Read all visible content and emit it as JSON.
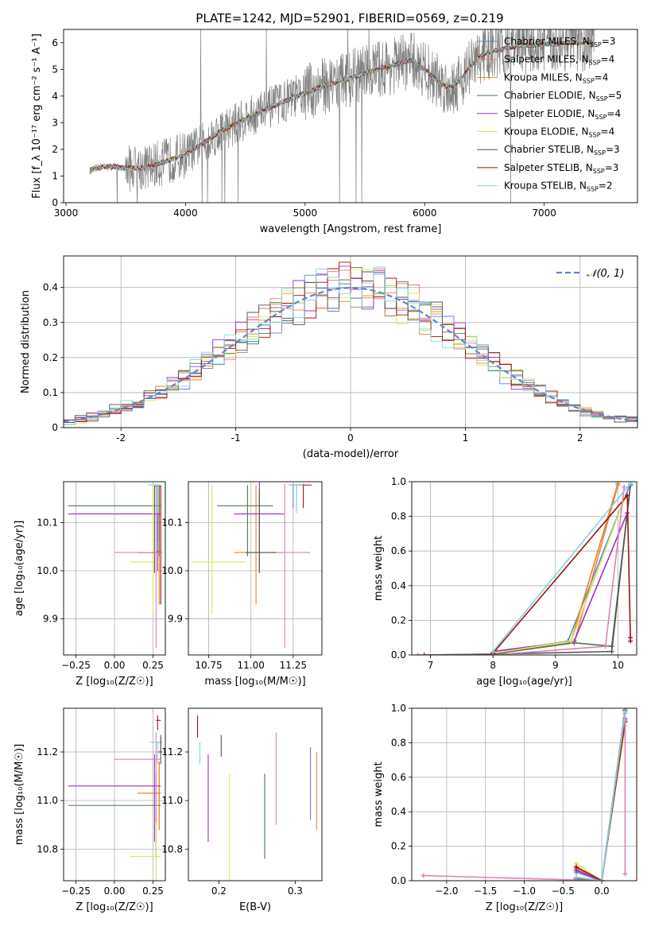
{
  "figure": {
    "title": "PLATE=1242, MJD=52901, FIBERID=0569, z=0.219"
  },
  "colors": {
    "Chabrier MILES": "#5b84d8",
    "Salpeter MILES": "#f07a55",
    "Kroupa MILES": "#e08a1c",
    "Chabrier ELODIE": "#4a7a4a",
    "Salpeter ELODIE": "#a32cc4",
    "Kroupa ELODIE": "#d4e85a",
    "Chabrier STELIB": "#555555",
    "Salpeter STELIB": "#a01010",
    "Kroupa STELIB": "#7fd4e0",
    "data_spectrum": "#808080",
    "normal_curve": "#5b84d8",
    "pink": "#e080b8"
  },
  "chart_data": [
    {
      "id": "spectrum",
      "type": "line",
      "title": "PLATE=1242, MJD=52901, FIBERID=0569, z=0.219",
      "xlabel": "wavelength [Angstrom, rest frame]",
      "ylabel": "Flux [f_λ 10⁻¹⁷ erg cm⁻² s⁻¹ A⁻¹]",
      "xlim": [
        2980,
        7780
      ],
      "ylim": [
        0,
        6.5
      ],
      "xticks": [
        3000,
        4000,
        5000,
        6000,
        7000
      ],
      "yticks": [
        0,
        1,
        2,
        3,
        4,
        5,
        6
      ],
      "grid": false,
      "legend_position": "top-right",
      "legend": [
        {
          "name": "Chabrier MILES",
          "label": "Chabrier MILES, N",
          "sub": "SSP",
          "n": "=3"
        },
        {
          "name": "Salpeter MILES",
          "label": "Salpeter MILES, N",
          "sub": "SSP",
          "n": "=4"
        },
        {
          "name": "Kroupa MILES",
          "label": "Kroupa MILES, N",
          "sub": "SSP",
          "n": "=4"
        },
        {
          "name": "Chabrier ELODIE",
          "label": "Chabrier ELODIE, N",
          "sub": "SSP",
          "n": "=5"
        },
        {
          "name": "Salpeter ELODIE",
          "label": "Salpeter ELODIE, N",
          "sub": "SSP",
          "n": "=4"
        },
        {
          "name": "Kroupa ELODIE",
          "label": "Kroupa ELODIE, N",
          "sub": "SSP",
          "n": "=4"
        },
        {
          "name": "Chabrier STELIB",
          "label": "Chabrier STELIB, N",
          "sub": "SSP",
          "n": "=3"
        },
        {
          "name": "Salpeter STELIB",
          "label": "Salpeter STELIB, N",
          "sub": "SSP",
          "n": "=3"
        },
        {
          "name": "Kroupa STELIB",
          "label": "Kroupa STELIB, N",
          "sub": "SSP",
          "n": "=2"
        }
      ],
      "continuum": {
        "x": [
          3200,
          3300,
          3400,
          3500,
          3600,
          3700,
          3800,
          3900,
          4000,
          4100,
          4200,
          4300,
          4400,
          4500,
          4600,
          4700,
          4800,
          4900,
          5000,
          5100,
          5200,
          5300,
          5400,
          5500,
          5600,
          5700,
          5800,
          5900,
          6000,
          6100,
          6200,
          6300,
          6400,
          6500,
          6600,
          6700,
          6800,
          6900,
          7000,
          7100,
          7200,
          7300,
          7400
        ],
        "y": [
          1.2,
          1.35,
          1.35,
          1.3,
          1.3,
          1.35,
          1.5,
          1.65,
          1.8,
          2.1,
          2.4,
          2.7,
          2.9,
          3.15,
          3.35,
          3.55,
          3.75,
          3.95,
          4.1,
          4.3,
          4.45,
          4.55,
          4.7,
          4.85,
          5.0,
          5.1,
          5.25,
          5.35,
          5.0,
          4.6,
          4.3,
          4.6,
          5.2,
          5.6,
          5.7,
          5.8,
          5.9,
          5.9,
          5.95,
          5.95,
          6.0,
          6.0,
          6.0
        ]
      }
    },
    {
      "id": "residuals",
      "type": "area",
      "xlabel": "(data-model)/error",
      "ylabel": "Normed distribution",
      "xlim": [
        -2.5,
        2.5
      ],
      "ylim": [
        0,
        0.49
      ],
      "xticks": [
        -2,
        -1,
        0,
        1,
        2
      ],
      "yticks": [
        0.0,
        0.1,
        0.2,
        0.3,
        0.4
      ],
      "grid": true,
      "legend_position": "top-right",
      "legend": [
        {
          "name": "normal",
          "label": "𝒩(0, 1)"
        }
      ],
      "bin_width": 0.1
    },
    {
      "id": "age_vs_Z",
      "type": "scatter",
      "xlabel": "Z [log₁₀(Z/Z☉)]",
      "ylabel": "age  [log₁₀(age/yr)]",
      "xlim": [
        -0.33,
        0.33
      ],
      "ylim": [
        9.825,
        10.185
      ],
      "xticks": [
        -0.25,
        0.0,
        0.25
      ],
      "xticklabels": [
        "−0.25",
        "0.00",
        "0.25"
      ],
      "yticks": [
        9.9,
        10.0,
        10.1
      ],
      "yticklabels": [
        "9.9",
        "10.0",
        "10.1"
      ],
      "grid": true,
      "points": [
        {
          "model": "Chabrier MILES",
          "x": 0.28,
          "xlo": 0.27,
          "xhi": 0.3,
          "y": 10.175,
          "ylo": 10.06,
          "yhi": 10.178
        },
        {
          "model": "Salpeter MILES",
          "x": 0.29,
          "xlo": 0.26,
          "xhi": 0.3,
          "y": 10.175,
          "ylo": 10.06,
          "yhi": 10.178
        },
        {
          "model": "Kroupa MILES",
          "x": 0.29,
          "xlo": 0.27,
          "xhi": 0.3,
          "y": 10.04,
          "ylo": 9.93,
          "yhi": 10.178
        },
        {
          "model": "Chabrier ELODIE",
          "x": 0.29,
          "xlo": -0.3,
          "xhi": 0.3,
          "y": 10.135,
          "ylo": 10.03,
          "yhi": 10.178
        },
        {
          "model": "Salpeter ELODIE",
          "x": 0.28,
          "xlo": -0.3,
          "xhi": 0.3,
          "y": 10.118,
          "ylo": 10.0,
          "yhi": 10.178
        },
        {
          "model": "Kroupa ELODIE",
          "x": 0.25,
          "xlo": 0.1,
          "xhi": 0.3,
          "y": 10.018,
          "ylo": 9.91,
          "yhi": 10.178
        },
        {
          "model": "Chabrier STELIB",
          "x": 0.26,
          "xlo": 0.15,
          "xhi": 0.3,
          "y": 10.038,
          "ylo": 9.995,
          "yhi": 10.178
        },
        {
          "model": "Salpeter STELIB",
          "x": 0.3,
          "xlo": 0.15,
          "xhi": 0.31,
          "y": 10.038,
          "ylo": 9.93,
          "yhi": 10.178
        },
        {
          "model": "pink",
          "x": 0.27,
          "xlo": 0.0,
          "xhi": 0.31,
          "y": 10.038,
          "ylo": 9.84,
          "yhi": 10.18
        },
        {
          "model": "Kroupa STELIB",
          "x": 0.28,
          "xlo": 0.22,
          "xhi": 0.3,
          "y": 10.178,
          "ylo": 10.12,
          "yhi": 10.18
        }
      ]
    },
    {
      "id": "age_vs_mass",
      "type": "scatter",
      "xlabel": "mass [log₁₀(M/M☉)]",
      "xlim": [
        10.63,
        11.42
      ],
      "ylim": [
        9.825,
        10.185
      ],
      "xticks": [
        10.75,
        11.0,
        11.25
      ],
      "xticklabels": [
        "10.75",
        "11.00",
        "11.25"
      ],
      "yticks": [
        9.9,
        10.0,
        10.1
      ],
      "yticklabels": [
        "9.9",
        "10.0",
        "10.1"
      ],
      "grid": true,
      "points": [
        {
          "model": "Chabrier MILES",
          "x": 11.25,
          "xlo": 11.23,
          "xhi": 11.27,
          "y": 10.178,
          "ylo": 10.13,
          "yhi": 10.18
        },
        {
          "model": "Salpeter MILES",
          "x": 11.27,
          "xlo": 11.25,
          "xhi": 11.3,
          "y": 10.178,
          "ylo": 10.13,
          "yhi": 10.18
        },
        {
          "model": "Kroupa MILES",
          "x": 11.03,
          "xlo": 10.9,
          "xhi": 11.2,
          "y": 10.038,
          "ylo": 9.93,
          "yhi": 10.178
        },
        {
          "model": "Chabrier ELODIE",
          "x": 10.98,
          "xlo": 10.8,
          "xhi": 11.13,
          "y": 10.135,
          "ylo": 10.03,
          "yhi": 10.178
        },
        {
          "model": "Salpeter ELODIE",
          "x": 11.05,
          "xlo": 10.9,
          "xhi": 11.2,
          "y": 10.118,
          "ylo": 10.0,
          "yhi": 11.18
        },
        {
          "model": "Kroupa ELODIE",
          "x": 10.77,
          "xlo": 10.65,
          "xhi": 10.97,
          "y": 10.018,
          "ylo": 9.91,
          "yhi": 10.178
        },
        {
          "model": "Chabrier STELIB",
          "x": 11.05,
          "xlo": 10.97,
          "xhi": 11.15,
          "y": 10.038,
          "ylo": 9.995,
          "yhi": 10.17
        },
        {
          "model": "Salpeter STELIB",
          "x": 11.31,
          "xlo": 11.28,
          "xhi": 11.36,
          "y": 10.178,
          "ylo": 10.13,
          "yhi": 10.18
        },
        {
          "model": "pink",
          "x": 11.2,
          "xlo": 11.15,
          "xhi": 11.35,
          "y": 10.038,
          "ylo": 9.84,
          "yhi": 10.18
        },
        {
          "model": "Kroupa STELIB",
          "x": 11.27,
          "xlo": 11.22,
          "xhi": 11.31,
          "y": 10.178,
          "ylo": 10.12,
          "yhi": 10.18
        }
      ]
    },
    {
      "id": "weight_vs_age",
      "type": "line",
      "xlabel": "age  [log₁₀(age/yr)]",
      "ylabel": "mass weight",
      "xlim": [
        6.7,
        10.3
      ],
      "ylim": [
        0,
        1
      ],
      "xticks": [
        7,
        8,
        9,
        10
      ],
      "yticks": [
        0.0,
        0.2,
        0.4,
        0.6,
        0.8,
        1.0
      ],
      "yticklabels": [
        "0.0",
        "0.2",
        "0.4",
        "0.6",
        "0.8",
        "1.0"
      ],
      "grid": true,
      "series": [
        {
          "model": "Chabrier MILES",
          "x": [
            8.0,
            9.2,
            10.2
          ],
          "y": [
            0.01,
            0.08,
            0.99
          ]
        },
        {
          "model": "Salpeter MILES",
          "x": [
            8.0,
            9.3,
            10.0
          ],
          "y": [
            0.01,
            0.07,
            0.98
          ]
        },
        {
          "model": "Kroupa MILES",
          "x": [
            8.0,
            9.25,
            10.0
          ],
          "y": [
            0.01,
            0.08,
            0.99
          ]
        },
        {
          "model": "Chabrier ELODIE",
          "x": [
            6.9,
            8.0,
            9.3,
            9.9,
            10.2
          ],
          "y": [
            0.0,
            0.005,
            0.07,
            0.05,
            0.98
          ]
        },
        {
          "model": "Salpeter ELODIE",
          "x": [
            8.0,
            9.3,
            10.15
          ],
          "y": [
            0.02,
            0.08,
            0.82
          ]
        },
        {
          "model": "Kroupa ELODIE",
          "x": [
            8.0,
            9.25,
            10.1
          ],
          "y": [
            0.01,
            0.08,
            0.9
          ]
        },
        {
          "model": "Chabrier STELIB",
          "x": [
            6.9,
            8.0,
            9.9,
            10.2
          ],
          "y": [
            0.0,
            0.005,
            0.02,
            0.98
          ]
        },
        {
          "model": "Salpeter STELIB",
          "x": [
            8.0,
            10.15,
            10.2,
            10.2
          ],
          "y": [
            0.01,
            0.92,
            0.1,
            0.08
          ]
        },
        {
          "model": "pink",
          "x": [
            6.8,
            8.0,
            9.8,
            10.1
          ],
          "y": [
            0.0,
            0.0,
            0.05,
            0.97
          ]
        },
        {
          "model": "Kroupa STELIB",
          "x": [
            8.0,
            10.2
          ],
          "y": [
            0.02,
            0.99
          ]
        }
      ]
    },
    {
      "id": "mass_vs_Z",
      "type": "scatter",
      "xlabel": "Z [log₁₀(Z/Z☉)]",
      "ylabel": "mass [log₁₀(M/M☉)]",
      "xlim": [
        -0.33,
        0.33
      ],
      "ylim": [
        10.67,
        11.38
      ],
      "xticks": [
        -0.25,
        0.0,
        0.25
      ],
      "xticklabels": [
        "−0.25",
        "0.00",
        "0.25"
      ],
      "yticks": [
        10.8,
        11.0,
        11.2
      ],
      "yticklabels": [
        "10.8",
        "11.0",
        "11.2"
      ],
      "grid": true,
      "points": [
        {
          "model": "Chabrier MILES",
          "x": 0.3,
          "xlo": 0.28,
          "xhi": 0.31,
          "y": 11.24,
          "ylo": 11.19,
          "yhi": 11.26
        },
        {
          "model": "Salpeter MILES",
          "x": 0.29,
          "xlo": 0.15,
          "xhi": 0.3,
          "y": 11.03,
          "ylo": 10.88,
          "yhi": 11.16
        },
        {
          "model": "Kroupa MILES",
          "x": 0.29,
          "xlo": 0.15,
          "xhi": 0.3,
          "y": 11.03,
          "ylo": 10.88,
          "yhi": 11.16
        },
        {
          "model": "Chabrier ELODIE",
          "x": 0.27,
          "xlo": -0.3,
          "xhi": 0.3,
          "y": 10.98,
          "ylo": 10.76,
          "yhi": 11.11
        },
        {
          "model": "Salpeter ELODIE",
          "x": 0.26,
          "xlo": -0.3,
          "xhi": 0.3,
          "y": 11.06,
          "ylo": 10.83,
          "yhi": 11.19
        },
        {
          "model": "Kroupa ELODIE",
          "x": 0.27,
          "xlo": 0.1,
          "xhi": 0.3,
          "y": 10.77,
          "ylo": 10.66,
          "yhi": 11.11
        },
        {
          "model": "Chabrier STELIB",
          "x": 0.3,
          "xlo": 0.28,
          "xhi": 0.31,
          "y": 11.2,
          "ylo": 11.15,
          "yhi": 11.27
        },
        {
          "model": "Salpeter STELIB",
          "x": 0.28,
          "xlo": 0.27,
          "xhi": 0.3,
          "y": 11.33,
          "ylo": 11.29,
          "yhi": 11.35
        },
        {
          "model": "pink",
          "x": 0.27,
          "xlo": 0.0,
          "xhi": 0.3,
          "y": 11.17,
          "ylo": 10.91,
          "yhi": 11.28
        },
        {
          "model": "Kroupa STELIB",
          "x": 0.28,
          "xlo": 0.23,
          "xhi": 0.3,
          "y": 11.24,
          "ylo": 11.15,
          "yhi": 11.24
        }
      ]
    },
    {
      "id": "mass_vs_ebv",
      "type": "scatter",
      "xlabel": "E(B-V)",
      "xlim": [
        0.16,
        0.335
      ],
      "ylim": [
        10.67,
        11.38
      ],
      "xticks": [
        0.2,
        0.3
      ],
      "xticklabels": [
        "0.2",
        "0.3"
      ],
      "yticks": [
        10.8,
        11.0,
        11.2
      ],
      "yticklabels": [
        "10.8",
        "11.0",
        "11.2"
      ],
      "grid": false,
      "points": [
        {
          "model": "Salpeter STELIB",
          "x": 0.172,
          "y": 11.3,
          "ylo": 11.26,
          "yhi": 11.35
        },
        {
          "model": "Kroupa STELIB",
          "x": 0.175,
          "y": 11.2,
          "ylo": 11.15,
          "yhi": 11.24
        },
        {
          "model": "Salpeter ELODIE",
          "x": 0.186,
          "y": 11.02,
          "ylo": 10.83,
          "yhi": 11.19
        },
        {
          "model": "Chabrier STELIB",
          "x": 0.203,
          "y": 11.22,
          "ylo": 11.18,
          "yhi": 11.27
        },
        {
          "model": "Kroupa ELODIE",
          "x": 0.214,
          "y": 10.9,
          "ylo": 10.66,
          "yhi": 11.11
        },
        {
          "model": "Chabrier ELODIE",
          "x": 0.26,
          "y": 10.9,
          "ylo": 10.76,
          "yhi": 11.11
        },
        {
          "model": "pink",
          "x": 0.275,
          "y": 11.1,
          "ylo": 10.9,
          "yhi": 11.28
        },
        {
          "model": "Chabrier MILES",
          "x": 0.32,
          "y": 11.07,
          "ylo": 10.92,
          "yhi": 11.22
        },
        {
          "model": "Salpeter MILES",
          "x": 0.328,
          "y": 11.04,
          "ylo": 10.88,
          "yhi": 11.2
        }
      ]
    },
    {
      "id": "weight_vs_Z",
      "type": "line",
      "xlabel": "Z [log₁₀(Z/Z☉)]",
      "ylabel": "mass weight",
      "xlim": [
        -2.45,
        0.45
      ],
      "ylim": [
        0,
        1
      ],
      "xticks": [
        -2.0,
        -1.5,
        -1.0,
        -0.5,
        0.0
      ],
      "xticklabels": [
        "−2.0",
        "−1.5",
        "−1.0",
        "−0.5",
        "0.0"
      ],
      "yticks": [
        0.0,
        0.2,
        0.4,
        0.6,
        0.8,
        1.0
      ],
      "yticklabels": [
        "0.0",
        "0.2",
        "0.4",
        "0.6",
        "0.8",
        "1.0"
      ],
      "grid": true,
      "series": [
        {
          "model": "Chabrier MILES",
          "x": [
            -0.33,
            0.0,
            0.3
          ],
          "y": [
            0.05,
            0.0,
            0.99
          ]
        },
        {
          "model": "Salpeter MILES",
          "x": [
            -0.33,
            0.0,
            0.3
          ],
          "y": [
            0.07,
            0.0,
            0.93
          ]
        },
        {
          "model": "Kroupa MILES",
          "x": [
            -0.33,
            0.0,
            0.3
          ],
          "y": [
            0.08,
            0.0,
            0.92
          ]
        },
        {
          "model": "Chabrier ELODIE",
          "x": [
            -0.33,
            0.0,
            0.3
          ],
          "y": [
            0.02,
            0.0,
            0.98
          ]
        },
        {
          "model": "Salpeter ELODIE",
          "x": [
            -0.33,
            0.0,
            0.3
          ],
          "y": [
            0.06,
            0.0,
            0.94
          ]
        },
        {
          "model": "Kroupa ELODIE",
          "x": [
            -0.33,
            0.0,
            0.3
          ],
          "y": [
            0.1,
            0.0,
            0.9
          ]
        },
        {
          "model": "Chabrier STELIB",
          "x": [
            -0.33,
            0.0,
            0.3
          ],
          "y": [
            0.01,
            0.0,
            0.99
          ]
        },
        {
          "model": "Salpeter STELIB",
          "x": [
            -0.33,
            0.0,
            0.3
          ],
          "y": [
            0.08,
            0.0,
            0.92
          ]
        },
        {
          "model": "pink",
          "x": [
            -2.3,
            0.0,
            0.3,
            0.3
          ],
          "y": [
            0.03,
            0.0,
            0.97,
            0.04
          ]
        },
        {
          "model": "Kroupa STELIB",
          "x": [
            -0.33,
            0.0,
            0.3
          ],
          "y": [
            0.02,
            0.0,
            0.98
          ]
        }
      ]
    }
  ]
}
